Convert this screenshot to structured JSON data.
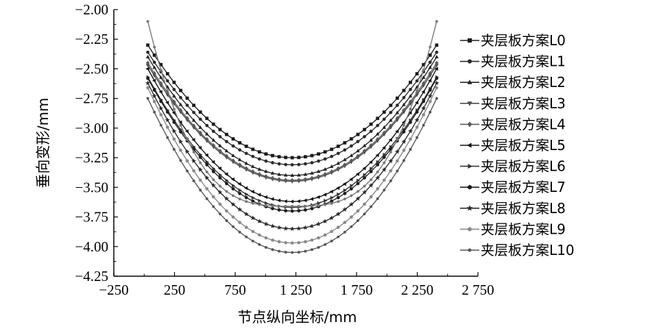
{
  "chart_data": {
    "type": "line",
    "title": "",
    "xlabel": "节点纵向坐标/mm",
    "ylabel": "垂向变形/mm",
    "xlim": [
      -250,
      2750
    ],
    "ylim": [
      -4.25,
      -2.0
    ],
    "xticks": [
      -250,
      250,
      750,
      1250,
      1750,
      2250,
      2750
    ],
    "xtick_labels": [
      "−250",
      "250",
      "750",
      "1 250",
      "1 750",
      "2 250",
      "2 750"
    ],
    "yticks": [
      -2.0,
      -2.25,
      -2.5,
      -2.75,
      -3.0,
      -3.25,
      -3.5,
      -3.75,
      -4.0,
      -4.25
    ],
    "ytick_labels": [
      "−2.00",
      "−2.25",
      "−2.50",
      "−2.75",
      "−3.00",
      "−3.25",
      "−3.50",
      "−3.75",
      "−4.00",
      "−4.25"
    ],
    "grid": false,
    "legend_position": "right",
    "x_range": [
      30,
      2410
    ],
    "x_center": 1220,
    "series": [
      {
        "name": "夹层板方案L0",
        "y_end": -2.3,
        "y_min": -3.25,
        "color": "#1a1a1a",
        "marker": "square"
      },
      {
        "name": "夹层板方案L1",
        "y_end": -2.36,
        "y_min": -3.31,
        "color": "#2b2b2b",
        "marker": "circle"
      },
      {
        "name": "夹层板方案L2",
        "y_end": -2.4,
        "y_min": -3.4,
        "color": "#222222",
        "marker": "triangle"
      },
      {
        "name": "夹层板方案L3",
        "y_end": -2.47,
        "y_min": -3.45,
        "color": "#4a4a4a",
        "marker": "triangle-down"
      },
      {
        "name": "夹层板方案L4",
        "y_end": -2.45,
        "y_min": -3.44,
        "color": "#5a5a5a",
        "marker": "diamond"
      },
      {
        "name": "夹层板方案L5",
        "y_end": -2.5,
        "y_min": -3.62,
        "color": "#111111",
        "marker": "triangle-left"
      },
      {
        "name": "夹层板方案L6",
        "y_end": -2.57,
        "y_min": -3.67,
        "color": "#333333",
        "marker": "triangle-right"
      },
      {
        "name": "夹层板方案L7",
        "y_end": -2.58,
        "y_min": -3.7,
        "color": "#1e1e1e",
        "marker": "hexagon"
      },
      {
        "name": "夹层板方案L8",
        "y_end": -2.62,
        "y_min": -3.85,
        "color": "#2a2a2a",
        "marker": "star"
      },
      {
        "name": "夹层板方案L9",
        "y_end": -2.66,
        "y_min": -3.97,
        "color": "#888888",
        "marker": "pentagon"
      },
      {
        "name": "夹层板方案L10",
        "y_end": -2.75,
        "y_min": -4.05,
        "color": "#555555",
        "marker": "small-circle"
      },
      {
        "name": "",
        "y_end": -2.1,
        "y_min": -3.66,
        "color": "#777777",
        "marker": "small-circle",
        "shape": "u",
        "legend": false
      }
    ]
  }
}
